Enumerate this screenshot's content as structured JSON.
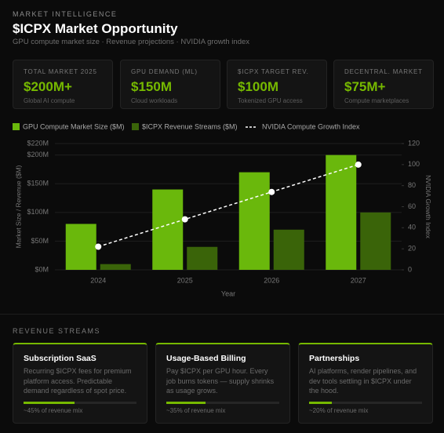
{
  "header": {
    "eyebrow": "MARKET INTELLIGENCE",
    "title": "$ICPX Market Opportunity",
    "subtitle": "GPU compute market size · Revenue projections · NVIDIA growth index"
  },
  "kpis": [
    {
      "label": "TOTAL MARKET 2025",
      "value": "$200M+",
      "note": "Global AI compute"
    },
    {
      "label": "GPU DEMAND (ML)",
      "value": "$150M",
      "note": "Cloud workloads"
    },
    {
      "label": "$ICPX TARGET REV.",
      "value": "$100M",
      "note": "Tokenized GPU access"
    },
    {
      "label": "DECENTRAL. MARKET",
      "value": "$75M+",
      "note": "Compute marketplaces"
    }
  ],
  "chart_data": {
    "type": "bar",
    "categories": [
      "2024",
      "2025",
      "2026",
      "2027"
    ],
    "x_label": "Year",
    "y_label": "Market Size / Revenue ($M)",
    "y2_label": "NVIDIA Growth Index",
    "series": [
      {
        "name": "GPU Compute Market Size ($M)",
        "color": "#6ab80c",
        "values": [
          80,
          140,
          170,
          200
        ]
      },
      {
        "name": "$ICPX Revenue Streams ($M)",
        "color": "#3a6409",
        "values": [
          10,
          40,
          70,
          100
        ]
      },
      {
        "name": "NVIDIA Compute Growth Index",
        "type": "line",
        "axis": "y2",
        "color": "#ffffff",
        "values": [
          22,
          48,
          74,
          100
        ]
      }
    ],
    "ylim": [
      0,
      220
    ],
    "yticks": [
      {
        "value": 0,
        "label": "$0M"
      },
      {
        "value": 50,
        "label": "$50M"
      },
      {
        "value": 100,
        "label": "$100M"
      },
      {
        "value": 150,
        "label": "$150M"
      },
      {
        "value": 200,
        "label": "$200M"
      },
      {
        "value": 220,
        "label": "$220M"
      }
    ],
    "y2lim": [
      0,
      120
    ],
    "y2ticks": [
      0,
      20,
      40,
      60,
      80,
      100,
      120
    ],
    "grid": true
  },
  "streams": {
    "title": "REVENUE STREAMS",
    "items": [
      {
        "name": "Subscription SaaS",
        "text": "Recurring $ICPX fees for premium platform access. Predictable demand regardless of spot price.",
        "share": 45,
        "share_label": "~45% of revenue mix"
      },
      {
        "name": "Usage-Based Billing",
        "text": "Pay $ICPX per GPU hour. Every job burns tokens — supply shrinks as usage grows.",
        "share": 35,
        "share_label": "~35% of revenue mix"
      },
      {
        "name": "Partnerships",
        "text": "AI platforms, render pipelines, and dev tools settling in $ICPX under the hood.",
        "share": 20,
        "share_label": "~20% of revenue mix"
      }
    ]
  }
}
